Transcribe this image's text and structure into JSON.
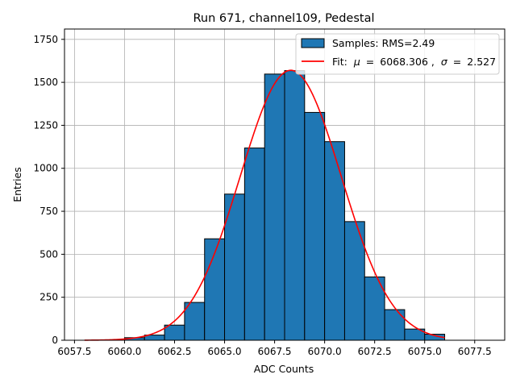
{
  "chart_data": {
    "type": "bar",
    "title": "Run 671, channel109, Pedestal",
    "xlabel": "ADC Counts",
    "ylabel": "Entries",
    "xlim": [
      6057.0,
      6079.0
    ],
    "ylim": [
      0,
      1810
    ],
    "grid": true,
    "legend_position": "top-right",
    "xticks": [
      6057.5,
      6060.0,
      6062.5,
      6065.0,
      6067.5,
      6070.0,
      6072.5,
      6075.0,
      6077.5
    ],
    "xtick_labels": [
      "6057.5",
      "6060.0",
      "6062.5",
      "6065.0",
      "6067.5",
      "6070.0",
      "6072.5",
      "6075.0",
      "6077.5"
    ],
    "yticks": [
      0,
      250,
      500,
      750,
      1000,
      1250,
      1500,
      1750
    ],
    "ytick_labels": [
      "0",
      "250",
      "500",
      "750",
      "1000",
      "1250",
      "1500",
      "1750"
    ],
    "histogram": {
      "name": "Samples: RMS=2.49",
      "color": "#1f77b4",
      "bins": [
        {
          "x0": 6060,
          "x1": 6061,
          "count": 15
        },
        {
          "x0": 6061,
          "x1": 6062,
          "count": 30
        },
        {
          "x0": 6062,
          "x1": 6063,
          "count": 88
        },
        {
          "x0": 6063,
          "x1": 6064,
          "count": 220
        },
        {
          "x0": 6064,
          "x1": 6065,
          "count": 590
        },
        {
          "x0": 6065,
          "x1": 6066,
          "count": 850
        },
        {
          "x0": 6066,
          "x1": 6067,
          "count": 1118
        },
        {
          "x0": 6067,
          "x1": 6068,
          "count": 1548
        },
        {
          "x0": 6068,
          "x1": 6069,
          "count": 1568
        },
        {
          "x0": 6069,
          "x1": 6070,
          "count": 1325
        },
        {
          "x0": 6070,
          "x1": 6071,
          "count": 1155
        },
        {
          "x0": 6071,
          "x1": 6072,
          "count": 690
        },
        {
          "x0": 6072,
          "x1": 6073,
          "count": 368
        },
        {
          "x0": 6073,
          "x1": 6074,
          "count": 178
        },
        {
          "x0": 6074,
          "x1": 6075,
          "count": 65
        },
        {
          "x0": 6075,
          "x1": 6076,
          "count": 35
        }
      ]
    },
    "fit": {
      "name": "Fit:",
      "mu_label": "μ",
      "mu_value": "6068.306",
      "sigma_label": "σ",
      "sigma_value": "2.527",
      "mu": 6068.306,
      "sigma": 2.527,
      "amplitude": 1570,
      "x_range": [
        6058,
        6076
      ],
      "color": "#ff0000"
    }
  }
}
